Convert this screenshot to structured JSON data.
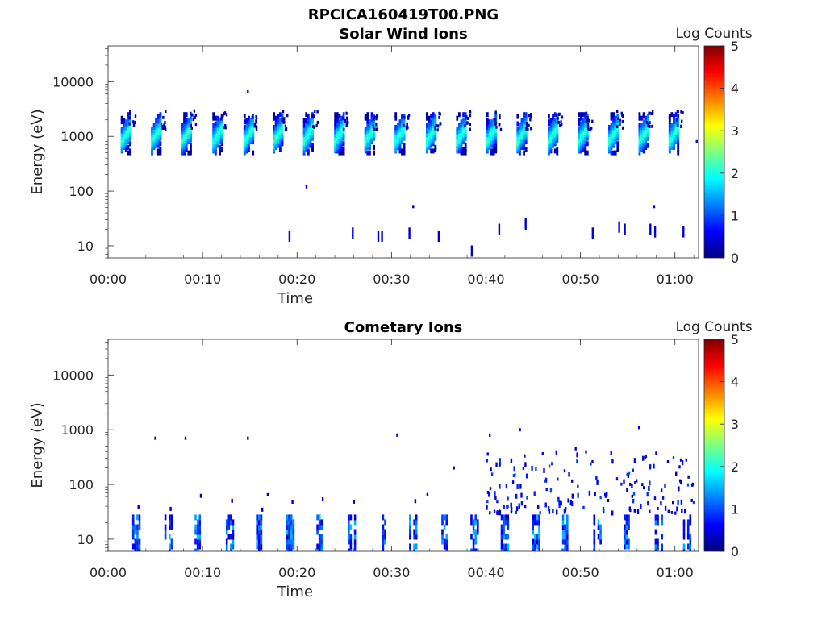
{
  "page_title": "RPCICA160419T00.PNG",
  "colors": {
    "colormap": [
      "#00007f",
      "#0000ff",
      "#007fff",
      "#00ffff",
      "#7fff7f",
      "#ffff00",
      "#ff7f00",
      "#ff0000",
      "#7f0000"
    ],
    "axis": "#262626",
    "background": "#ffffff"
  },
  "chart_data": [
    {
      "type": "heatmap",
      "title": "Solar Wind Ions",
      "xlabel": "Time",
      "ylabel": "Energy (eV)",
      "xlim_minutes": [
        0,
        62.5
      ],
      "ylim": [
        6,
        45000
      ],
      "y_scale": "log",
      "x_ticks": [
        "00:00",
        "00:10",
        "00:20",
        "00:30",
        "00:40",
        "00:50",
        "01:00"
      ],
      "y_ticks": [
        "10",
        "100",
        "1000",
        "10000"
      ],
      "colorbar": {
        "label": "Log Counts",
        "min": 0,
        "max": 5,
        "ticks": [
          "0",
          "1",
          "2",
          "3",
          "4",
          "5"
        ]
      },
      "bursts_minutes": [
        1.9,
        5.1,
        8.3,
        11.6,
        14.9,
        18.0,
        21.2,
        24.5,
        27.7,
        30.9,
        34.2,
        37.4,
        40.6,
        43.8,
        47.1,
        50.3,
        53.5,
        56.7,
        59.9
      ],
      "burst_core_energy_eV": [
        500,
        2500
      ],
      "burst_peak_log_counts": 2.2,
      "sparse_events": [
        {
          "t": 14.8,
          "e": 6500,
          "v": 0.3
        },
        {
          "t": 21.0,
          "e": 120,
          "v": 0.3
        },
        {
          "t": 32.3,
          "e": 52,
          "v": 0.3
        },
        {
          "t": 57.8,
          "e": 52,
          "v": 0.3
        },
        {
          "t": 19.2,
          "e": 15,
          "v": 0.4
        },
        {
          "t": 25.9,
          "e": 17,
          "v": 0.4
        },
        {
          "t": 28.6,
          "e": 15,
          "v": 0.4
        },
        {
          "t": 29.0,
          "e": 15,
          "v": 0.4
        },
        {
          "t": 31.9,
          "e": 17,
          "v": 0.4
        },
        {
          "t": 35.0,
          "e": 15,
          "v": 0.4
        },
        {
          "t": 38.5,
          "e": 8,
          "v": 0.4
        },
        {
          "t": 41.4,
          "e": 20,
          "v": 0.4
        },
        {
          "t": 44.2,
          "e": 25,
          "v": 0.4
        },
        {
          "t": 51.3,
          "e": 17,
          "v": 0.4
        },
        {
          "t": 54.1,
          "e": 22,
          "v": 0.4
        },
        {
          "t": 54.7,
          "e": 20,
          "v": 0.4
        },
        {
          "t": 57.4,
          "e": 20,
          "v": 0.4
        },
        {
          "t": 57.9,
          "e": 18,
          "v": 0.4
        },
        {
          "t": 60.9,
          "e": 18,
          "v": 0.4
        },
        {
          "t": 62.3,
          "e": 800,
          "v": 0.5
        }
      ]
    },
    {
      "type": "heatmap",
      "title": "Cometary Ions",
      "xlabel": "Time",
      "ylabel": "Energy (eV)",
      "xlim_minutes": [
        0,
        62.5
      ],
      "ylim": [
        6,
        45000
      ],
      "y_scale": "log",
      "x_ticks": [
        "00:00",
        "00:10",
        "00:20",
        "00:30",
        "00:40",
        "00:50",
        "01:00"
      ],
      "y_ticks": [
        "10",
        "100",
        "1000",
        "10000"
      ],
      "colorbar": {
        "label": "Log Counts",
        "min": 0,
        "max": 5,
        "ticks": [
          "0",
          "1",
          "2",
          "3",
          "4",
          "5"
        ]
      },
      "bursts_minutes": [
        3.0,
        6.4,
        9.6,
        12.9,
        16.1,
        19.3,
        22.5,
        25.8,
        29.0,
        32.3,
        35.5,
        38.8,
        42.0,
        45.3,
        48.5,
        51.8,
        55.0,
        58.3,
        61.3
      ],
      "burst_energy_eV": [
        6,
        25
      ],
      "burst_peak_log_counts": 1.6,
      "scattered_energy_eV_after_minute_40": [
        30,
        400
      ],
      "sparse_events": [
        {
          "t": 5.0,
          "e": 700,
          "v": 0.3
        },
        {
          "t": 8.2,
          "e": 700,
          "v": 0.3
        },
        {
          "t": 14.8,
          "e": 700,
          "v": 0.3
        },
        {
          "t": 30.6,
          "e": 800,
          "v": 0.3
        },
        {
          "t": 40.4,
          "e": 800,
          "v": 0.3
        },
        {
          "t": 43.6,
          "e": 1000,
          "v": 0.3
        },
        {
          "t": 56.2,
          "e": 1100,
          "v": 0.3
        },
        {
          "t": 36.6,
          "e": 200,
          "v": 0.3
        },
        {
          "t": 16.9,
          "e": 65,
          "v": 0.3
        },
        {
          "t": 33.8,
          "e": 65,
          "v": 0.3
        },
        {
          "t": 49.5,
          "e": 450,
          "v": 0.4
        },
        {
          "t": 61.2,
          "e": 280,
          "v": 0.4
        }
      ]
    }
  ]
}
